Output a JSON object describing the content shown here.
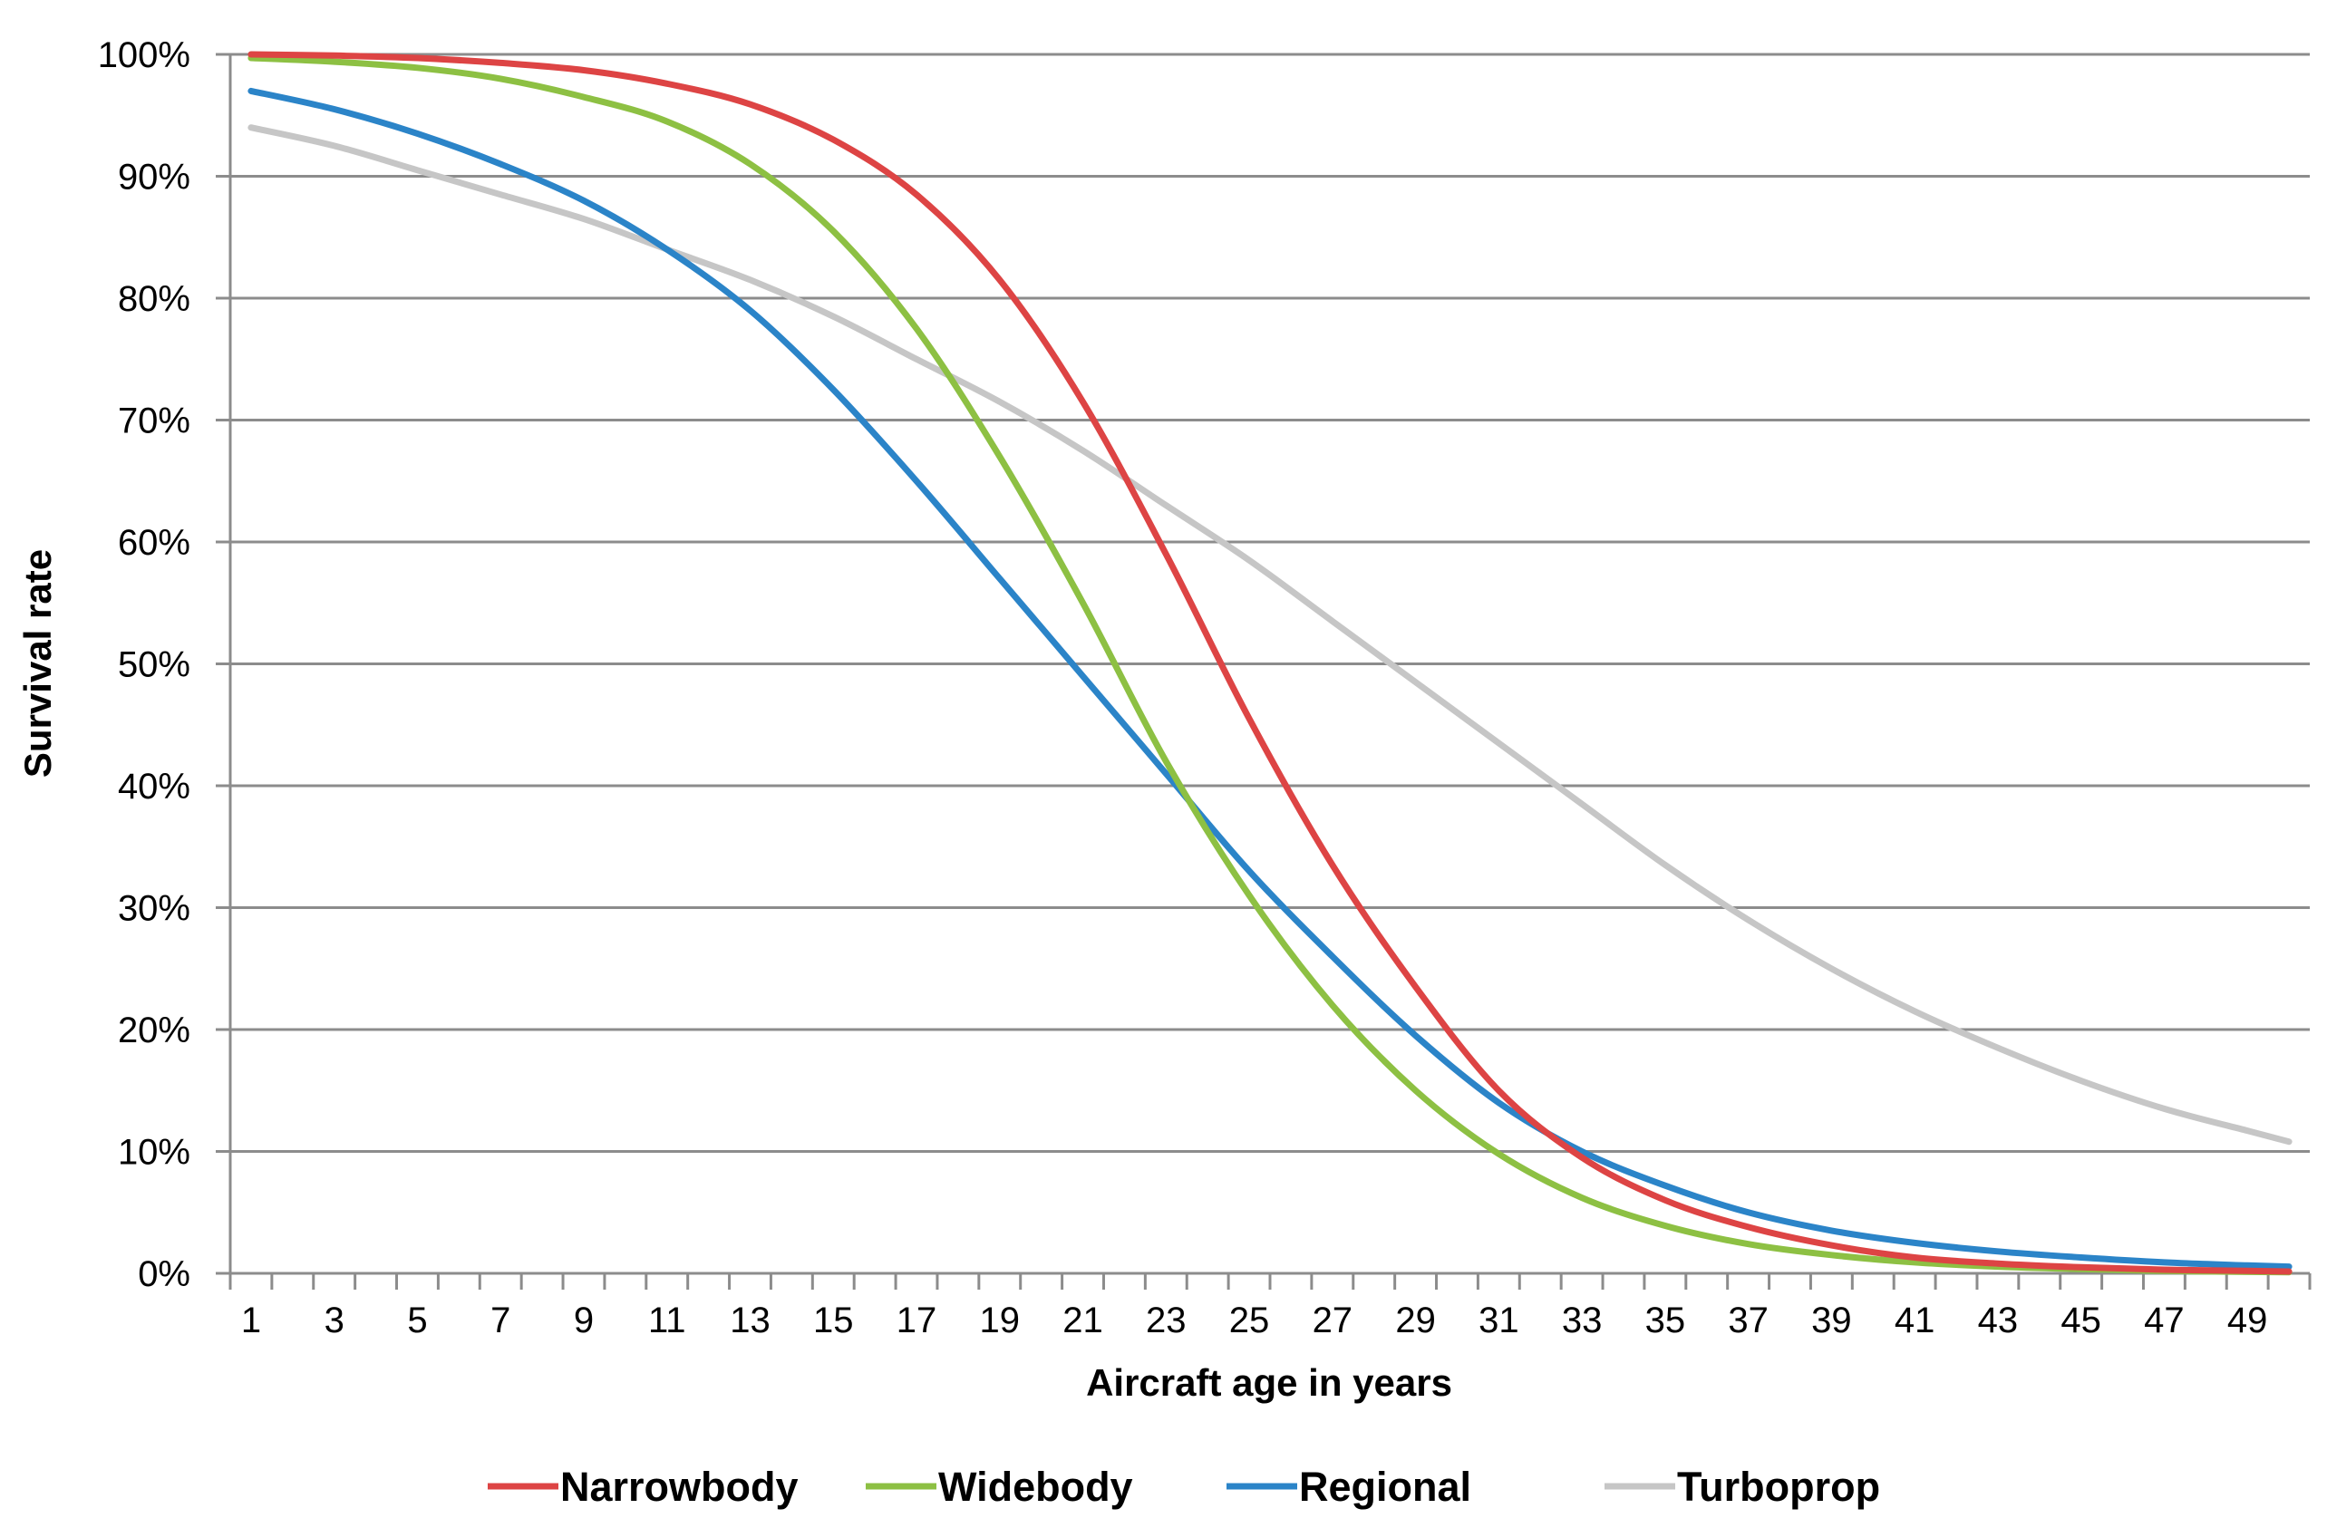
{
  "chart_data": {
    "type": "line",
    "title": "",
    "xlabel": "Aircraft age in years",
    "ylabel": "Survival rate",
    "x_tick_labels": [
      "1",
      "3",
      "5",
      "7",
      "9",
      "11",
      "13",
      "15",
      "17",
      "19",
      "21",
      "23",
      "25",
      "27",
      "29",
      "31",
      "33",
      "35",
      "37",
      "39",
      "41",
      "43",
      "45",
      "47",
      "49"
    ],
    "y_tick_labels": [
      "0%",
      "10%",
      "20%",
      "30%",
      "40%",
      "50%",
      "60%",
      "70%",
      "80%",
      "90%",
      "100%"
    ],
    "xlim": [
      0.5,
      50.5
    ],
    "ylim": [
      0,
      100
    ],
    "grid": "horizontal",
    "legend_position": "bottom",
    "x": [
      1,
      3,
      5,
      7,
      9,
      11,
      13,
      15,
      17,
      19,
      21,
      23,
      25,
      27,
      29,
      31,
      33,
      35,
      37,
      39,
      41,
      43,
      45,
      47,
      49,
      50
    ],
    "series": [
      {
        "name": "Narrowbody",
        "color": "#dd4444",
        "values": [
          100,
          99.9,
          99.7,
          99.3,
          98.7,
          97.6,
          95.9,
          93,
          88.5,
          81.5,
          71.5,
          59,
          45.5,
          33.5,
          23.5,
          15,
          9.5,
          6,
          3.8,
          2.3,
          1.3,
          0.8,
          0.5,
          0.3,
          0.2,
          0.15
        ]
      },
      {
        "name": "Widebody",
        "color": "#8dc043",
        "values": [
          99.7,
          99.4,
          98.9,
          98,
          96.5,
          94.5,
          91,
          85.5,
          77.5,
          67,
          55,
          42,
          31,
          22,
          15,
          9.8,
          6.2,
          3.9,
          2.4,
          1.5,
          0.9,
          0.55,
          0.35,
          0.2,
          0.12,
          0.1
        ]
      },
      {
        "name": "Regional",
        "color": "#2b84c8",
        "values": [
          97,
          95.5,
          93.5,
          91,
          88,
          84,
          79,
          72.5,
          65,
          57,
          49,
          41,
          33,
          26,
          19.5,
          14,
          10,
          7.2,
          5,
          3.5,
          2.5,
          1.8,
          1.3,
          0.9,
          0.65,
          0.55
        ]
      },
      {
        "name": "Turboprop",
        "color": "#c6c6c6",
        "values": [
          94,
          92.5,
          90.5,
          88.5,
          86.5,
          84,
          81.5,
          78.5,
          75,
          71.5,
          67.5,
          63,
          58.5,
          53.5,
          48.5,
          43.5,
          38.5,
          33.5,
          29,
          25,
          21.5,
          18.5,
          15.8,
          13.5,
          11.7,
          10.8
        ]
      }
    ]
  }
}
